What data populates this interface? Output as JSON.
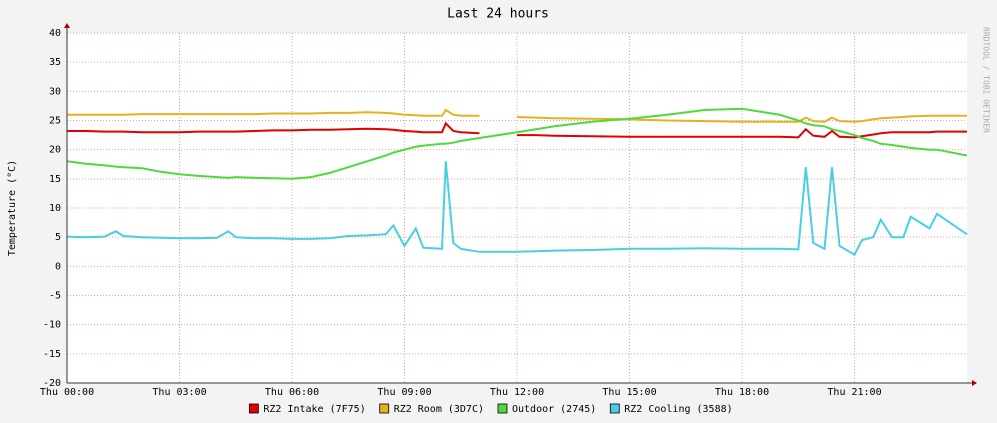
{
  "chart_data": {
    "type": "line",
    "title": "Last 24 hours",
    "y_label": "Temperature (°C)",
    "watermark": "RRDTOOL / TOBI OETIKER",
    "x": [
      0,
      0.5,
      1,
      1.3,
      1.5,
      2,
      2.5,
      3,
      3.5,
      4,
      4.3,
      4.5,
      5,
      5.5,
      6,
      6.5,
      7,
      7.5,
      8,
      8.5,
      8.7,
      9,
      9.3,
      9.5,
      10,
      10.1,
      10.3,
      10.5,
      11,
      11.5,
      12,
      12.5,
      13,
      14,
      15,
      16,
      17,
      18,
      19,
      19.5,
      19.7,
      19.9,
      20.2,
      20.4,
      20.6,
      21,
      21.2,
      21.5,
      21.7,
      22,
      22.3,
      22.5,
      23,
      23.2,
      24
    ],
    "series": [
      {
        "name": "RZ2 Intake (7F75)",
        "color": "#e00000",
        "values": [
          23.2,
          23.2,
          23.1,
          23.1,
          23.1,
          23.0,
          23.0,
          23.0,
          23.1,
          23.1,
          23.1,
          23.1,
          23.2,
          23.3,
          23.3,
          23.4,
          23.4,
          23.5,
          23.6,
          23.5,
          23.4,
          23.2,
          23.1,
          23.0,
          23.0,
          24.5,
          23.2,
          23.0,
          22.8,
          null,
          22.5,
          22.5,
          22.4,
          22.3,
          22.2,
          22.2,
          22.2,
          22.2,
          22.2,
          22.1,
          23.5,
          22.4,
          22.2,
          23.2,
          22.2,
          22.1,
          22.3,
          22.6,
          22.8,
          23.0,
          23.0,
          23.0,
          23.0,
          23.1,
          23.1
        ]
      },
      {
        "name": "RZ2 Room (3D7C)",
        "color": "#e8b020",
        "values": [
          26.0,
          26.0,
          26.0,
          26.0,
          26.0,
          26.1,
          26.1,
          26.1,
          26.1,
          26.1,
          26.1,
          26.1,
          26.1,
          26.2,
          26.2,
          26.2,
          26.3,
          26.3,
          26.4,
          26.3,
          26.2,
          26.0,
          25.9,
          25.8,
          25.8,
          26.8,
          26.0,
          25.8,
          25.8,
          null,
          25.6,
          25.5,
          25.4,
          25.3,
          25.2,
          25.0,
          24.9,
          24.8,
          24.8,
          24.8,
          25.5,
          24.9,
          24.8,
          25.5,
          24.9,
          24.8,
          24.9,
          25.2,
          25.4,
          25.5,
          25.6,
          25.7,
          25.8,
          25.8,
          25.8
        ]
      },
      {
        "name": "Outdoor (2745)",
        "color": "#50d840",
        "values": [
          18,
          17.6,
          17.3,
          17.1,
          17,
          16.8,
          16.2,
          15.8,
          15.5,
          15.3,
          15.2,
          15.3,
          15.2,
          15.1,
          15.0,
          15.3,
          16,
          17,
          18,
          19,
          19.5,
          20,
          20.5,
          20.7,
          21,
          21,
          21.2,
          21.5,
          22,
          22.5,
          23,
          23.5,
          24,
          24.8,
          25.3,
          26,
          26.8,
          27,
          26,
          25,
          24.5,
          24.2,
          24,
          23.5,
          23.2,
          22.5,
          22,
          21.5,
          21,
          20.8,
          20.5,
          20.3,
          20,
          20,
          19
        ]
      },
      {
        "name": "RZ2 Cooling (3588)",
        "color": "#48d0e0",
        "values": [
          5.1,
          5.0,
          5.1,
          6,
          5.2,
          5.0,
          4.9,
          4.8,
          4.8,
          4.9,
          6.0,
          5.0,
          4.8,
          4.8,
          4.7,
          4.7,
          4.8,
          5.2,
          5.3,
          5.5,
          7,
          3.5,
          6.5,
          3.2,
          3.0,
          18,
          4,
          3.0,
          2.5,
          2.5,
          2.5,
          2.6,
          2.7,
          2.8,
          3,
          3,
          3.1,
          3,
          3,
          2.9,
          17,
          4,
          3,
          17,
          3.5,
          2,
          4.5,
          5,
          8,
          5,
          5,
          8.5,
          6.5,
          9,
          5.5
        ]
      }
    ],
    "xlim": [
      0,
      24
    ],
    "xticks": [
      {
        "value": 0,
        "label": "Thu 00:00"
      },
      {
        "value": 3,
        "label": "Thu 03:00"
      },
      {
        "value": 6,
        "label": "Thu 06:00"
      },
      {
        "value": 9,
        "label": "Thu 09:00"
      },
      {
        "value": 12,
        "label": "Thu 12:00"
      },
      {
        "value": 15,
        "label": "Thu 15:00"
      },
      {
        "value": 18,
        "label": "Thu 18:00"
      },
      {
        "value": 21,
        "label": "Thu 21:00"
      }
    ],
    "ylim": [
      -20,
      40
    ],
    "yticks": [
      -20,
      -15,
      -10,
      -5,
      0,
      5,
      10,
      15,
      20,
      25,
      30,
      35,
      40
    ],
    "grid": true
  }
}
